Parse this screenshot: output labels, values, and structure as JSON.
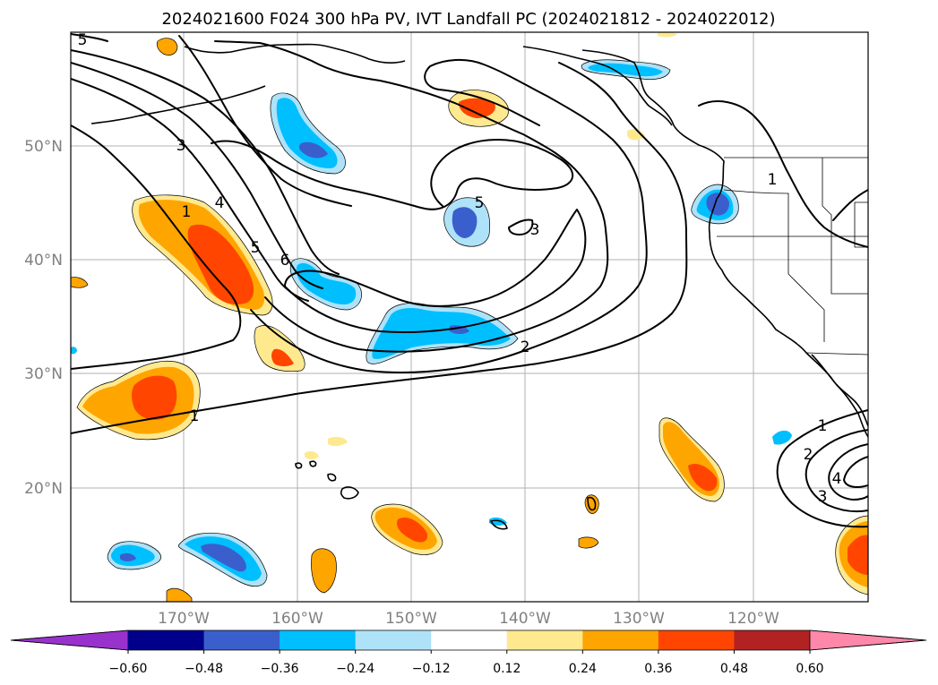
{
  "title": "2024021600 F024 300 hPa PV, IVT Landfall PC (2024021812 - 2024022012)",
  "lat_labels": [
    "50°N",
    "40°N",
    "30°N",
    "20°N"
  ],
  "lon_labels": [
    "170°W",
    "160°W",
    "150°W",
    "140°W",
    "130°W",
    "120°W"
  ],
  "colorbar": {
    "tick_labels": [
      "−0.60",
      "−0.48",
      "−0.36",
      "−0.24",
      "−0.12",
      "0.12",
      "0.24",
      "0.36",
      "0.48",
      "0.60"
    ],
    "colors": [
      "#9932cc",
      "#00008b",
      "#3a5fcd",
      "#00bfff",
      "#aee2f8",
      "#ffffff",
      "#ffe98f",
      "#ffa500",
      "#ff4500",
      "#b22222",
      "#ff88aa"
    ]
  },
  "pv_contour_labels": [
    "5",
    "3",
    "1",
    "4",
    "5",
    "6",
    "5",
    "3",
    "2",
    "1",
    "1",
    "1",
    "2",
    "3",
    "4"
  ],
  "colors": {
    "neg_light": "#aee2f8",
    "neg_mid": "#00bfff",
    "neg_dark": "#3a5fcd",
    "pos_light": "#ffe98f",
    "pos_mid": "#ffa500",
    "pos_high": "#ff4500",
    "grid": "#b0b0b0",
    "axis_label": "#808080"
  }
}
